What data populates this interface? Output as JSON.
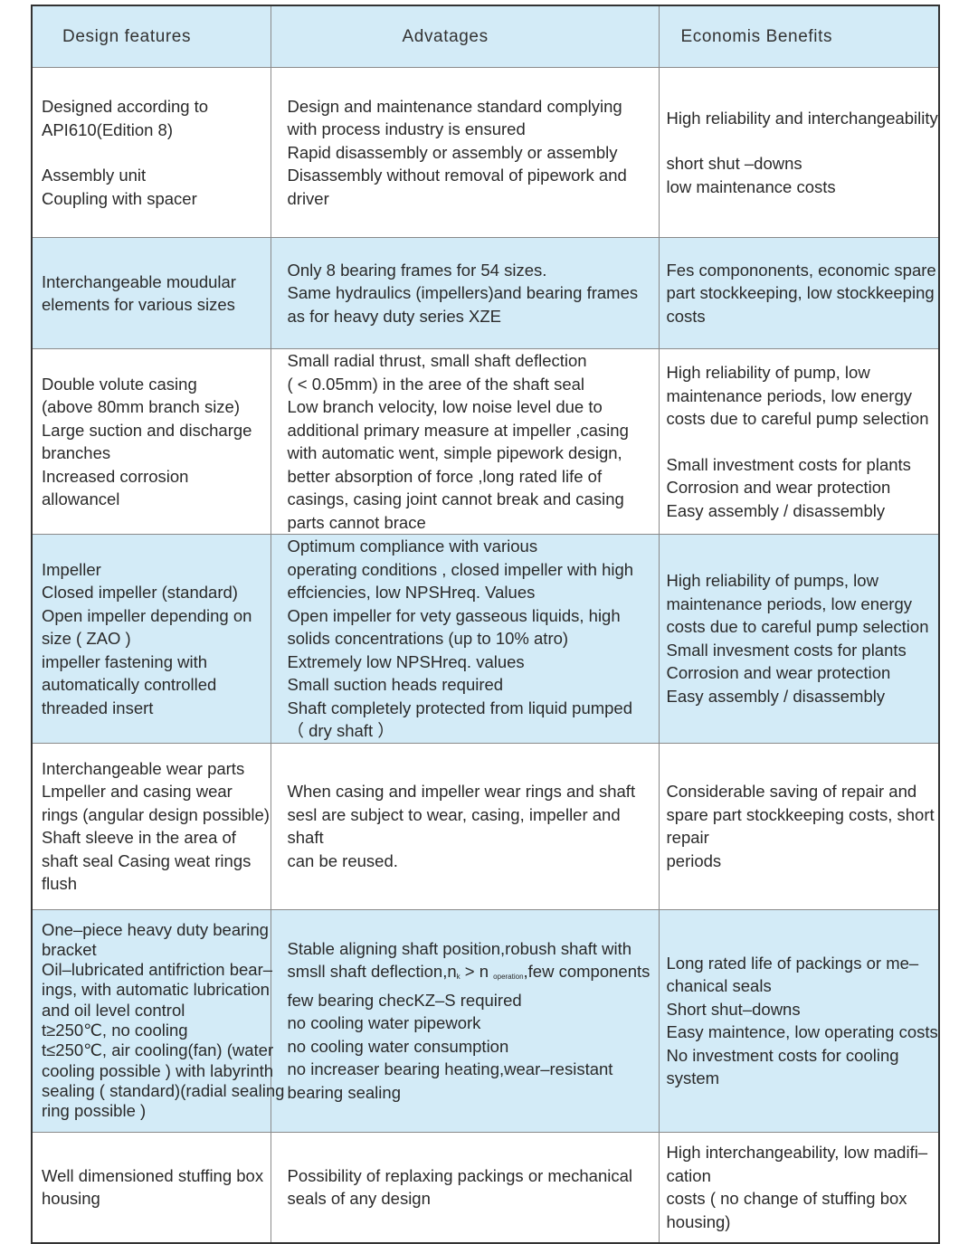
{
  "colors": {
    "header_bg": "#d3ebf7",
    "alt_row_bg": "#d3ebf7",
    "border": "#8a8a8a",
    "outer_border": "#333333"
  },
  "headers": [
    "Design features",
    "Advatages",
    "Economis Benefits"
  ],
  "rows": [
    {
      "blue": false,
      "height": 188,
      "cells": [
        [
          "Designed according to",
          "API610(Edition 8)",
          "",
          "Assembly unit",
          "Coupling  with spacer"
        ],
        [
          "Design and maintenance standard complying",
          "with process industry is ensured",
          "Rapid disassembly or assembly or assembly",
          "Disassembly without removal of pipework and",
          "driver"
        ],
        [
          "High reliability and interchangeability",
          "",
          "short shut –downs",
          "low maintenance costs"
        ]
      ]
    },
    {
      "blue": true,
      "height": 123,
      "cells": [
        [
          "Interchangeable moudular",
          "elements for  various sizes"
        ],
        [
          "Only 8 bearing frames for 54 sizes.",
          "Same hydraulics (impellers)and bearing frames",
          "as for heavy duty series XZE"
        ],
        [
          "Fes compononents, economic spare",
          "part stockkeeping, low stockkeeping",
          "costs"
        ]
      ]
    },
    {
      "blue": false,
      "height": 199,
      "cells": [
        [
          "Double volute casing",
          "(above 80mm branch size)",
          "Large suction and discharge",
          "branches",
          "Increased corrosion",
          "allowancel"
        ],
        [
          "Small radial thrust, small shaft deflection",
          "( < 0.05mm) in the aree of the shaft seal",
          "Low branch velocity, low noise level due to",
          "additional primary measure at impeller ,casing",
          "with automatic went, simple pipework design,",
          "better absorption of force ,long rated life of",
          "casings, casing joint cannot break and casing",
          "parts cannot brace"
        ],
        [
          "High reliability of pump, low",
          "maintenance periods, low energy",
          "costs due to careful pump selection",
          "",
          "Small investment costs for plants",
          "Corrosion and wear protection",
          "Easy assembly / disassembly"
        ]
      ]
    },
    {
      "blue": true,
      "height": 229,
      "cells": [
        [
          "Impeller",
          "Closed  impeller (standard)",
          "Open impeller depending on",
          "size ( ZAO )",
          "impeller fastening with",
          "automatically controlled",
          "threaded insert"
        ],
        [
          "Optimum compliance with various",
          "operating conditions , closed impeller with high",
          "effciencies, low NPSHreq. Values",
          "Open impeller for vety gasseous liquids, high",
          "solids concentrations (up to 10% atro)",
          "Extremely low NPSHreq. values",
          "Small suction heads required",
          "Shaft completely protected from liquid pumped",
          "（ dry shaft ）"
        ],
        [
          "High reliability of pumps, low",
          "maintenance periods, low energy",
          "costs due to careful pump selection",
          "Small invesment costs for plants",
          "Corrosion and wear protection",
          "Easy assembly / disassembly"
        ]
      ]
    },
    {
      "blue": false,
      "height": 184,
      "cells": [
        [
          "Interchangeable wear parts",
          "Lmpeller and casing wear",
          "rings (angular design possible)",
          "Shaft sleeve in the area of",
          "shaft seal Casing weat rings",
          "flush"
        ],
        [
          "When casing and impeller wear rings and shaft",
          "sesl are subject to wear, casing, impeller and",
          "shaft",
          "can be reused."
        ],
        [
          "Considerable saving of repair and",
          "spare part stockkeeping costs, short",
          "repair",
          "periods"
        ]
      ]
    },
    {
      "blue": true,
      "tight": true,
      "height": 246,
      "cells": [
        [
          "One–piece heavy duty bearing",
          "bracket",
          "Oil–lubricated antifriction bear–",
          "ings, with automatic lubrication",
          "and oil level control",
          "t≥250℃, no cooling",
          "t≤250℃, air cooling(fan) (water",
          "cooling possible ) with labyrinth",
          "sealing ( standard)(radial sealing",
          "ring possible )"
        ],
        [
          "Stable aligning shaft position,robush shaft with",
          [
            {
              "t": "smsll shaft deflection,n"
            },
            {
              "t": "k",
              "sub": true
            },
            {
              "t": " > n "
            },
            {
              "t": "operation",
              "sub": true
            },
            {
              "t": ",few components"
            }
          ],
          "few bearing checKZ–S required",
          "no cooling water pipework",
          "no cooling water consumption",
          "no increaser bearing heating,wear–resistant",
          "bearing sealing"
        ],
        [
          "Long rated life of packings or me–",
          "chanical seals",
          "Short shut–downs",
          "Easy maintence, low operating costs",
          "No investment costs for cooling",
          "system"
        ]
      ]
    },
    {
      "blue": false,
      "height": 123,
      "cells": [
        [
          "Well dimensioned stuffing box",
          "housing"
        ],
        [
          "Possibility of replaxing packings or mechanical",
          "seals of any design"
        ],
        [
          "High interchangeability, low madifi–",
          "cation",
          "costs ( no change of stuffing box",
          "housing)"
        ]
      ]
    }
  ]
}
